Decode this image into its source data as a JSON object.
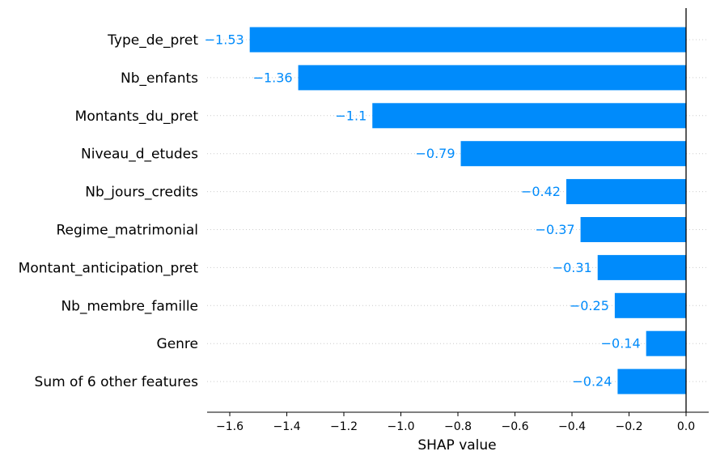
{
  "chart_data": {
    "type": "bar",
    "orientation": "horizontal",
    "categories": [
      "Type_de_pret",
      "Nb_enfants",
      "Montants_du_pret",
      "Niveau_d_etudes",
      "Nb_jours_credits",
      "Regime_matrimonial",
      "Montant_anticipation_pret",
      "Nb_membre_famille",
      "Genre",
      "Sum of 6 other features"
    ],
    "values": [
      -1.53,
      -1.36,
      -1.1,
      -0.79,
      -0.42,
      -0.37,
      -0.31,
      -0.25,
      -0.14,
      -0.24
    ],
    "value_labels": [
      "−1.53",
      "−1.36",
      "−1.1",
      "−0.79",
      "−0.42",
      "−0.37",
      "−0.31",
      "−0.25",
      "−0.14",
      "−0.24"
    ],
    "xlabel": "SHAP value",
    "ylabel": "",
    "xlim": [
      -1.68,
      0.08
    ],
    "xticks": [
      -1.6,
      -1.4,
      -1.2,
      -1.0,
      -0.8,
      -0.6,
      -0.4,
      -0.2,
      0.0
    ],
    "xtick_labels": [
      "−1.6",
      "−1.4",
      "−1.2",
      "−1.0",
      "−0.8",
      "−0.6",
      "−0.4",
      "−0.2",
      "0.0"
    ],
    "colors": {
      "bar": "#008bfb",
      "label": "#008bfb",
      "zero_line": "#000000",
      "grid": "#cccccc"
    },
    "grid": "dotted horizontal guide lines per feature"
  }
}
